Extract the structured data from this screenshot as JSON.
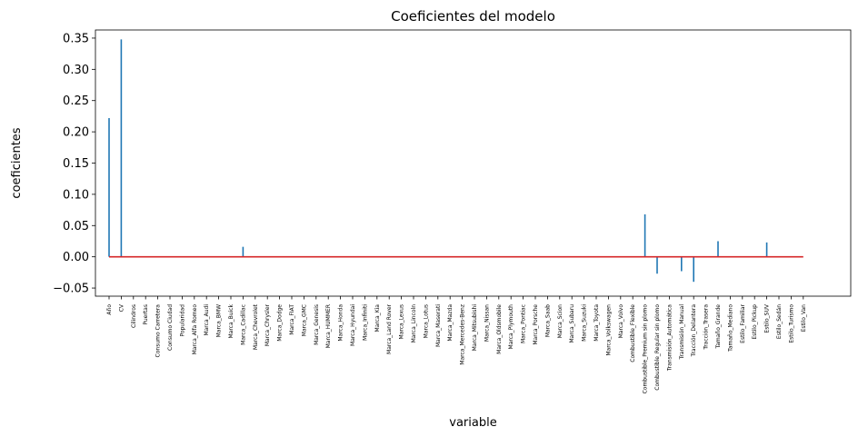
{
  "chart_data": {
    "type": "stem",
    "title": "Coeficientes del modelo",
    "xlabel": "variable",
    "ylabel": "coeficientes",
    "ylim": [
      -0.063,
      0.363
    ],
    "yticks": [
      -0.05,
      0.0,
      0.05,
      0.1,
      0.15,
      0.2,
      0.25,
      0.3,
      0.35
    ],
    "ytick_labels": [
      "−0.05",
      "0.00",
      "0.05",
      "0.10",
      "0.15",
      "0.20",
      "0.25",
      "0.30",
      "0.35"
    ],
    "grid": false,
    "stem_color": "#1f77b4",
    "baseline_color": "#d62728",
    "categories": [
      "Año",
      "CV",
      "Cilindros",
      "Puertas",
      "Consumo Carretera",
      "Consumo Ciudad",
      "Popularidad",
      "Marca_Alfa Romeo",
      "Marca_Audi",
      "Marca_BMW",
      "Marca_Buick",
      "Marca_Cadillac",
      "Marca_Chevrolet",
      "Marca_Chrysler",
      "Marca_Dodge",
      "Marca_FIAT",
      "Marca_GMC",
      "Marca_Genesis",
      "Marca_HUMMER",
      "Marca_Honda",
      "Marca_Hyundai",
      "Marca_Infiniti",
      "Marca_Kia",
      "Marca_Land Rover",
      "Marca_Lexus",
      "Marca_Lincoln",
      "Marca_Lotus",
      "Marca_Maserati",
      "Marca_Mazda",
      "Marca_Mercedes-Benz",
      "Marca_Mitsubishi",
      "Marca_Nissan",
      "Marca_Oldsmobile",
      "Marca_Plymouth",
      "Marca_Pontiac",
      "Marca_Porsche",
      "Marca_Saab",
      "Marca_Scion",
      "Marca_Subaru",
      "Marca_Suzuki",
      "Marca_Toyota",
      "Marca_Volkswagen",
      "Marca_Volvo",
      "Combustible_Flexible",
      "Combustible_Premium sin plomo",
      "Combustible_Regular sin plomo",
      "Transmisión_Automática",
      "Transmisión_Manual",
      "Tracción_Delantera",
      "Tracción_Trasera",
      "Tamaño_Grande",
      "Tamaño_Mediano",
      "Estilo_Familiar",
      "Estilo_Pickup",
      "Estilo_SUV",
      "Estilo_Sedán",
      "Estilo_Turismo",
      "Estilo_Van"
    ],
    "values": [
      0.222,
      0.348,
      0,
      0,
      0,
      0,
      0,
      0,
      0,
      0,
      0,
      0.016,
      0,
      0,
      0,
      0,
      0,
      0,
      0,
      0,
      0,
      0,
      0,
      0,
      0,
      0,
      0,
      0,
      0,
      0,
      0,
      0,
      0,
      0,
      0,
      0,
      0,
      0,
      0,
      0,
      0,
      0,
      0,
      0,
      0.068,
      -0.027,
      0,
      -0.023,
      -0.04,
      0,
      0.025,
      0,
      0,
      0,
      0.023,
      0,
      0,
      0
    ]
  }
}
